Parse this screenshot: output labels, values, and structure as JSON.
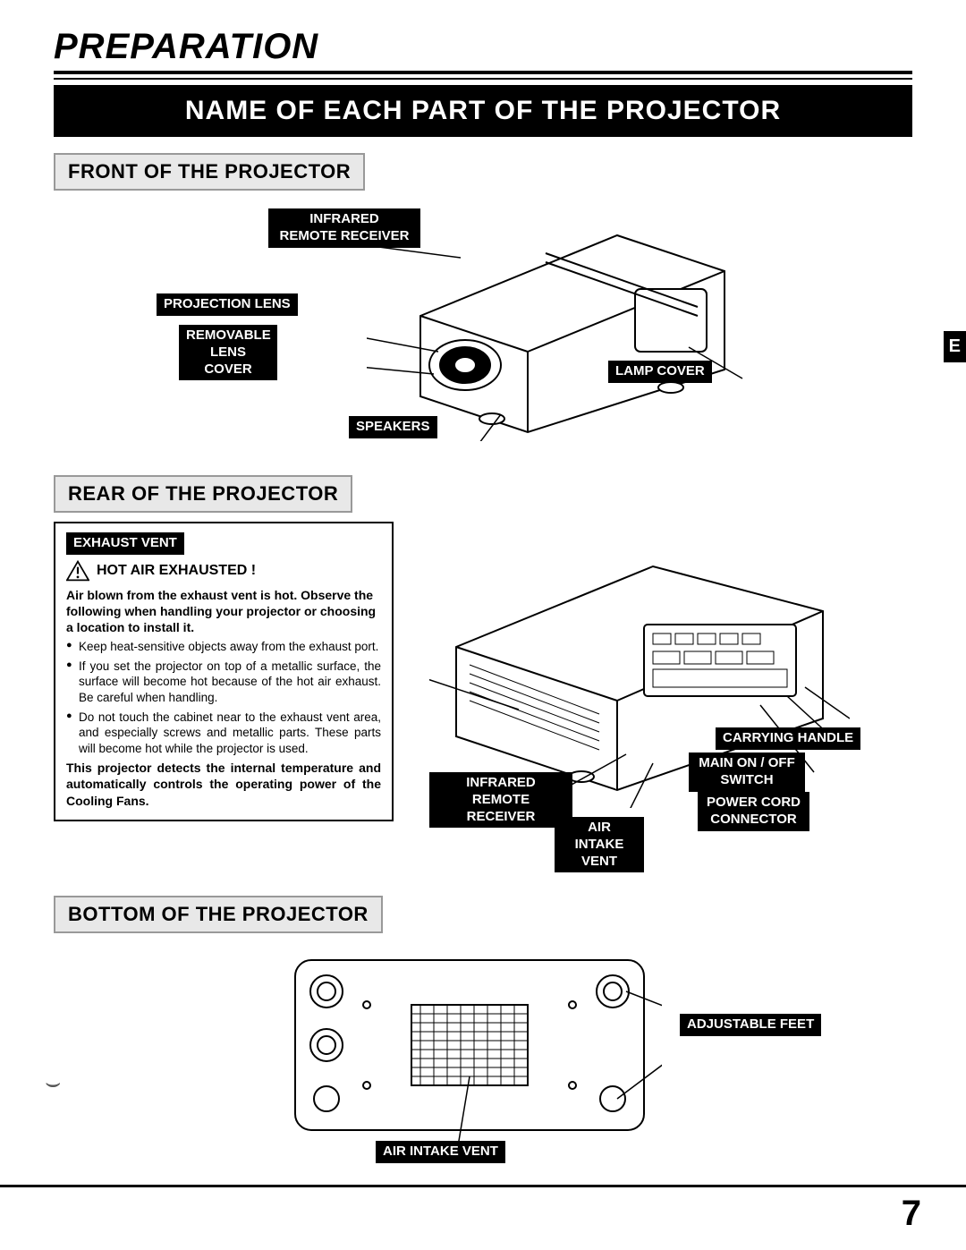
{
  "page": {
    "title": "PREPARATION",
    "banner": "NAME OF EACH PART OF THE PROJECTOR",
    "page_number": "7",
    "side_tab": "E"
  },
  "sections": {
    "front": {
      "header": "FRONT OF THE PROJECTOR",
      "labels": {
        "infrared": "INFRARED\nREMOTE RECEIVER",
        "projection_lens": "PROJECTION LENS",
        "removable_cover": "REMOVABLE\nLENS COVER",
        "lamp_cover": "LAMP COVER",
        "speakers": "SPEAKERS"
      }
    },
    "rear": {
      "header": "REAR OF THE PROJECTOR",
      "warning": {
        "exhaust_label": "EXHAUST VENT",
        "heading": "HOT AIR EXHAUSTED !",
        "lead": "Air blown from the exhaust vent is hot. Observe the following when handling your projector or choosing a location to install it.",
        "bullets": [
          "Keep heat-sensitive objects away from the exhaust port.",
          "If you set the projector on top of a metallic surface, the surface will become hot because of the hot air exhaust. Be careful when handling.",
          "Do not touch the cabinet near to the exhaust vent area, and especially screws and metallic parts. These parts will become hot while the projector is used."
        ],
        "tail": "This projector detects the internal temperature and automatically controls the operating power of the Cooling Fans."
      },
      "labels": {
        "infrared": "INFRARED\nREMOTE RECEIVER",
        "air_intake": "AIR INTAKE\nVENT",
        "carrying_handle": "CARRYING HANDLE",
        "main_switch": "MAIN ON / OFF\nSWITCH",
        "power_cord": "POWER CORD\nCONNECTOR"
      }
    },
    "bottom": {
      "header": "BOTTOM OF THE PROJECTOR",
      "labels": {
        "adjustable_feet": "ADJUSTABLE FEET",
        "air_intake": "AIR INTAKE VENT"
      }
    }
  },
  "colors": {
    "black": "#000000",
    "white": "#ffffff",
    "header_bg": "#e8e8e8",
    "header_border": "#999999"
  },
  "typography": {
    "title_size_pt": 30,
    "banner_size_pt": 22,
    "section_header_size_pt": 16,
    "label_size_pt": 11,
    "body_size_pt": 10
  }
}
